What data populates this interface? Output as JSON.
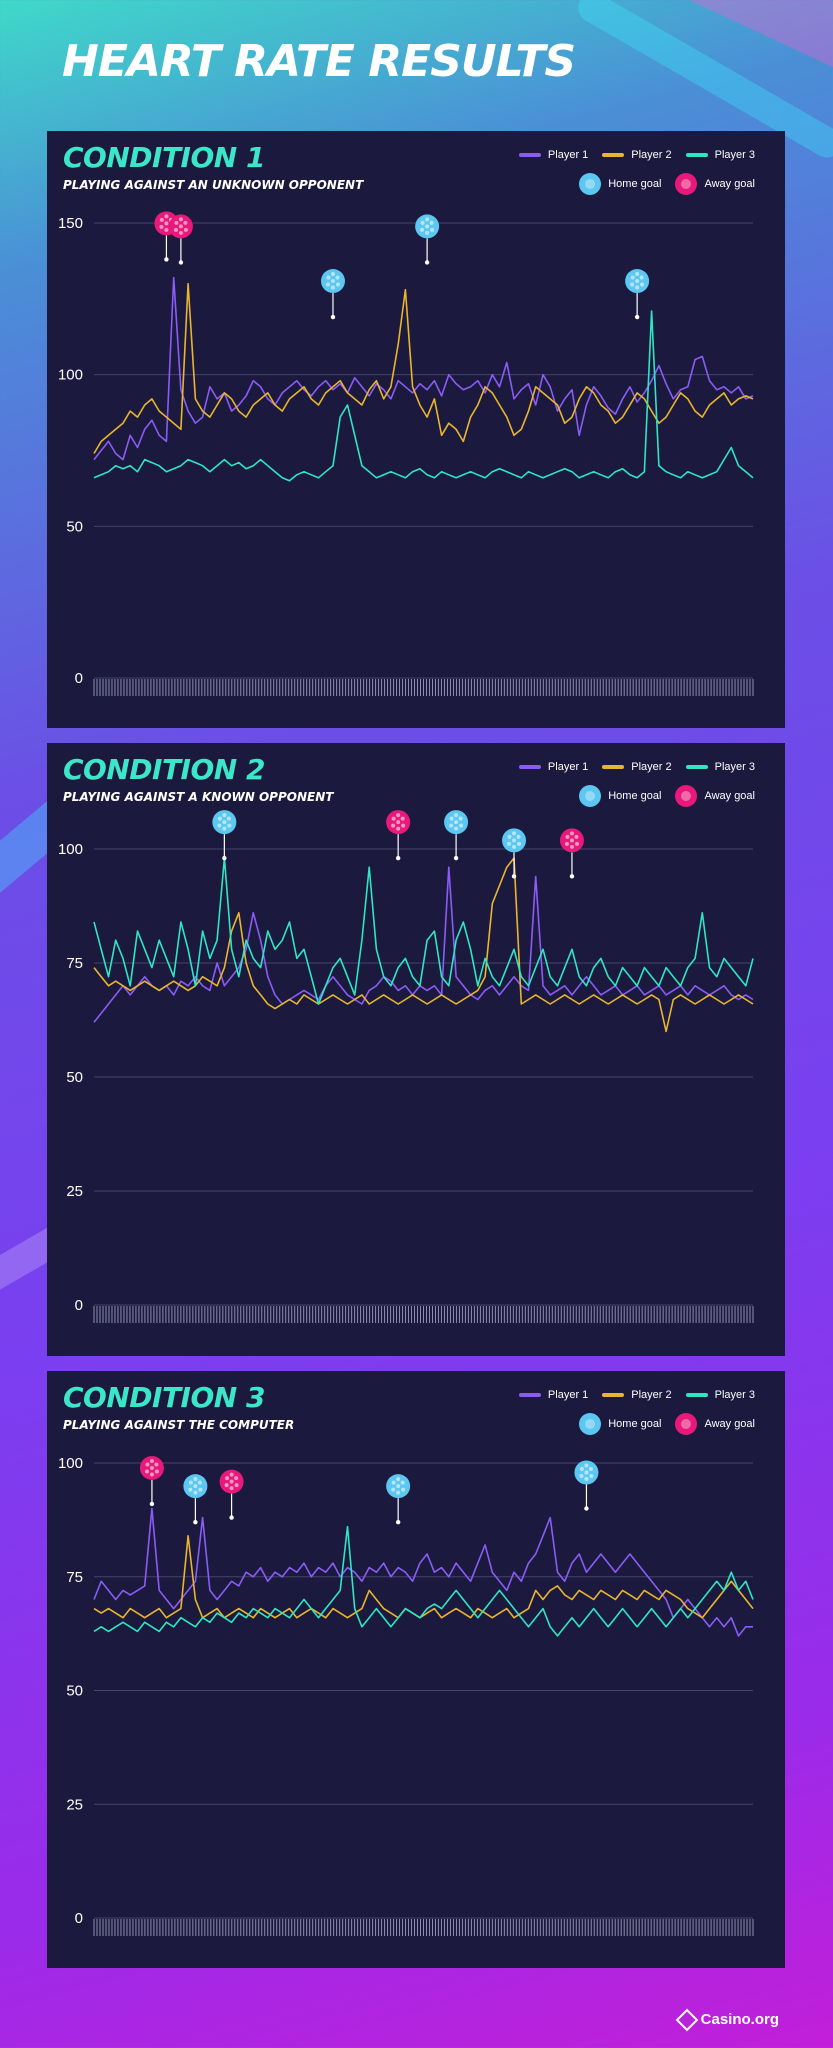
{
  "page": {
    "title": "HEART RATE RESULTS",
    "brand": "Casino.org"
  },
  "legend": {
    "player1": "Player 1",
    "player2": "Player 2",
    "player3": "Player 3",
    "home_goal": "Home goal",
    "away_goal": "Away goal"
  },
  "colors": {
    "player1": "#8a5cf5",
    "player2": "#e9b52e",
    "player3": "#2ee6c2",
    "home_goal": "#5cc7f0",
    "away_goal": "#e8197a",
    "panel_bg": "#1b1a3e",
    "grid": "#44436b",
    "title_accent": "#3ce6c8"
  },
  "chart_data": [
    {
      "type": "line",
      "title": "CONDITION 1",
      "subtitle": "PLAYING AGAINST AN UNKNOWN OPPONENT",
      "ylim": [
        0,
        150
      ],
      "yticks": [
        0,
        50,
        100,
        150
      ],
      "series": [
        {
          "name": "Player 1",
          "values": [
            72,
            75,
            78,
            74,
            72,
            80,
            76,
            82,
            85,
            80,
            78,
            132,
            95,
            88,
            84,
            86,
            96,
            92,
            94,
            88,
            90,
            93,
            98,
            96,
            92,
            90,
            94,
            96,
            98,
            95,
            93,
            96,
            98,
            95,
            97,
            94,
            99,
            96,
            93,
            97,
            95,
            92,
            98,
            96,
            94,
            97,
            95,
            98,
            93,
            100,
            97,
            95,
            96,
            98,
            94,
            100,
            96,
            104,
            92,
            95,
            97,
            90,
            100,
            96,
            88,
            92,
            95,
            80,
            90,
            96,
            93,
            89,
            87,
            92,
            96,
            91,
            94,
            98,
            103,
            97,
            92,
            95,
            96,
            105,
            106,
            98,
            95,
            96,
            94,
            96,
            92,
            93
          ]
        },
        {
          "name": "Player 2",
          "values": [
            74,
            78,
            80,
            82,
            84,
            88,
            86,
            90,
            92,
            88,
            86,
            84,
            82,
            130,
            92,
            88,
            86,
            90,
            94,
            92,
            88,
            86,
            90,
            92,
            94,
            90,
            88,
            92,
            94,
            96,
            92,
            90,
            94,
            96,
            98,
            94,
            92,
            90,
            95,
            98,
            92,
            96,
            110,
            128,
            96,
            90,
            86,
            92,
            80,
            84,
            82,
            78,
            86,
            90,
            96,
            94,
            90,
            86,
            80,
            82,
            88,
            96,
            94,
            92,
            90,
            84,
            86,
            92,
            96,
            94,
            90,
            88,
            84,
            86,
            90,
            94,
            92,
            88,
            84,
            86,
            90,
            94,
            92,
            88,
            86,
            90,
            92,
            94,
            90,
            92,
            93,
            92
          ]
        },
        {
          "name": "Player 3",
          "values": [
            66,
            67,
            68,
            70,
            69,
            70,
            68,
            72,
            71,
            70,
            68,
            69,
            70,
            72,
            71,
            70,
            68,
            70,
            72,
            70,
            71,
            69,
            70,
            72,
            70,
            68,
            66,
            65,
            67,
            68,
            67,
            66,
            68,
            70,
            86,
            90,
            80,
            70,
            68,
            66,
            67,
            68,
            67,
            66,
            68,
            69,
            67,
            66,
            68,
            67,
            66,
            67,
            68,
            67,
            66,
            68,
            69,
            68,
            67,
            66,
            68,
            67,
            66,
            67,
            68,
            69,
            68,
            66,
            67,
            68,
            67,
            66,
            68,
            69,
            67,
            66,
            68,
            121,
            70,
            68,
            67,
            66,
            68,
            67,
            66,
            67,
            68,
            72,
            76,
            70,
            68,
            66
          ]
        }
      ],
      "goals": [
        {
          "type": "away",
          "x": 10,
          "value": 138
        },
        {
          "type": "away",
          "x": 12,
          "value": 137
        },
        {
          "type": "home",
          "x": 33,
          "value": 119
        },
        {
          "type": "home",
          "x": 46,
          "value": 137
        },
        {
          "type": "home",
          "x": 75,
          "value": 119
        }
      ]
    },
    {
      "type": "line",
      "title": "CONDITION 2",
      "subtitle": "PLAYING AGAINST A KNOWN OPPONENT",
      "ylim": [
        0,
        100
      ],
      "yticks": [
        0,
        25,
        50,
        75,
        100
      ],
      "series": [
        {
          "name": "Player 1",
          "values": [
            62,
            64,
            66,
            68,
            70,
            68,
            70,
            72,
            70,
            69,
            70,
            68,
            71,
            70,
            72,
            70,
            69,
            75,
            70,
            72,
            74,
            78,
            86,
            80,
            72,
            68,
            66,
            67,
            68,
            69,
            68,
            67,
            70,
            72,
            70,
            68,
            67,
            66,
            69,
            70,
            72,
            71,
            69,
            70,
            68,
            70,
            69,
            70,
            68,
            96,
            72,
            70,
            68,
            67,
            69,
            70,
            68,
            70,
            72,
            70,
            69,
            94,
            70,
            68,
            69,
            70,
            68,
            70,
            72,
            70,
            68,
            69,
            70,
            68,
            69,
            70,
            68,
            69,
            70,
            68,
            69,
            70,
            68,
            70,
            69,
            68,
            69,
            70,
            68,
            67,
            68,
            67
          ]
        },
        {
          "name": "Player 2",
          "values": [
            74,
            72,
            70,
            71,
            70,
            69,
            70,
            71,
            70,
            69,
            70,
            71,
            70,
            69,
            70,
            72,
            71,
            70,
            74,
            82,
            86,
            75,
            70,
            68,
            66,
            65,
            66,
            67,
            66,
            68,
            67,
            66,
            67,
            68,
            67,
            66,
            67,
            68,
            66,
            67,
            68,
            67,
            66,
            67,
            68,
            67,
            66,
            67,
            68,
            67,
            66,
            67,
            68,
            69,
            72,
            88,
            92,
            96,
            98,
            66,
            67,
            68,
            67,
            66,
            67,
            68,
            67,
            66,
            67,
            68,
            67,
            66,
            67,
            68,
            67,
            66,
            67,
            68,
            67,
            60,
            67,
            68,
            67,
            66,
            67,
            68,
            67,
            66,
            67,
            68,
            67,
            66
          ]
        },
        {
          "name": "Player 3",
          "values": [
            84,
            78,
            72,
            80,
            76,
            70,
            82,
            78,
            74,
            80,
            76,
            72,
            84,
            78,
            70,
            82,
            76,
            80,
            98,
            78,
            72,
            80,
            76,
            74,
            82,
            78,
            80,
            84,
            76,
            78,
            72,
            66,
            70,
            74,
            76,
            72,
            68,
            80,
            96,
            78,
            72,
            70,
            74,
            76,
            72,
            70,
            80,
            82,
            72,
            70,
            80,
            84,
            78,
            70,
            76,
            72,
            70,
            74,
            78,
            72,
            70,
            74,
            78,
            72,
            70,
            74,
            78,
            72,
            70,
            74,
            76,
            72,
            70,
            74,
            72,
            70,
            74,
            72,
            70,
            74,
            72,
            70,
            74,
            76,
            86,
            74,
            72,
            76,
            74,
            72,
            70,
            76
          ]
        }
      ],
      "goals": [
        {
          "type": "home",
          "x": 18,
          "value": 98
        },
        {
          "type": "away",
          "x": 42,
          "value": 98
        },
        {
          "type": "home",
          "x": 50,
          "value": 98
        },
        {
          "type": "home",
          "x": 58,
          "value": 94
        },
        {
          "type": "away",
          "x": 66,
          "value": 94
        }
      ]
    },
    {
      "type": "line",
      "title": "CONDITION 3",
      "subtitle": "PLAYING AGAINST THE COMPUTER",
      "ylim": [
        0,
        100
      ],
      "yticks": [
        0,
        25,
        50,
        75,
        100
      ],
      "series": [
        {
          "name": "Player 1",
          "values": [
            70,
            74,
            72,
            70,
            72,
            71,
            72,
            73,
            90,
            72,
            70,
            68,
            70,
            72,
            74,
            88,
            72,
            70,
            72,
            74,
            73,
            76,
            75,
            77,
            74,
            76,
            75,
            77,
            76,
            78,
            75,
            77,
            76,
            78,
            75,
            77,
            76,
            74,
            77,
            76,
            78,
            75,
            77,
            76,
            74,
            78,
            80,
            76,
            77,
            75,
            78,
            76,
            74,
            78,
            82,
            76,
            74,
            72,
            76,
            74,
            78,
            80,
            84,
            88,
            76,
            74,
            78,
            80,
            76,
            78,
            80,
            78,
            76,
            78,
            80,
            78,
            76,
            74,
            72,
            70,
            66,
            68,
            70,
            68,
            66,
            64,
            66,
            64,
            66,
            62,
            64,
            64
          ]
        },
        {
          "name": "Player 2",
          "values": [
            68,
            67,
            68,
            67,
            66,
            68,
            67,
            66,
            67,
            68,
            66,
            67,
            68,
            84,
            70,
            66,
            67,
            68,
            66,
            67,
            68,
            67,
            66,
            68,
            67,
            66,
            67,
            68,
            66,
            67,
            68,
            67,
            66,
            68,
            67,
            66,
            67,
            68,
            72,
            70,
            68,
            67,
            66,
            68,
            67,
            66,
            67,
            68,
            66,
            67,
            68,
            67,
            66,
            68,
            67,
            66,
            67,
            68,
            66,
            67,
            68,
            72,
            70,
            72,
            73,
            71,
            70,
            72,
            71,
            70,
            72,
            71,
            70,
            72,
            71,
            70,
            72,
            71,
            70,
            72,
            71,
            70,
            68,
            67,
            66,
            68,
            70,
            72,
            74,
            72,
            70,
            68
          ]
        },
        {
          "name": "Player 3",
          "values": [
            63,
            64,
            63,
            64,
            65,
            64,
            63,
            65,
            64,
            63,
            65,
            64,
            66,
            65,
            64,
            66,
            65,
            67,
            66,
            65,
            67,
            66,
            68,
            67,
            66,
            68,
            67,
            66,
            68,
            70,
            68,
            66,
            68,
            70,
            72,
            86,
            68,
            64,
            66,
            68,
            66,
            64,
            66,
            68,
            67,
            66,
            68,
            69,
            68,
            70,
            72,
            70,
            68,
            66,
            68,
            70,
            72,
            70,
            68,
            66,
            64,
            66,
            68,
            64,
            62,
            64,
            66,
            64,
            66,
            68,
            66,
            64,
            66,
            68,
            66,
            64,
            66,
            68,
            66,
            64,
            66,
            68,
            66,
            68,
            70,
            72,
            74,
            72,
            76,
            72,
            74,
            70
          ]
        }
      ],
      "goals": [
        {
          "type": "away",
          "x": 8,
          "value": 91
        },
        {
          "type": "home",
          "x": 14,
          "value": 87
        },
        {
          "type": "away",
          "x": 19,
          "value": 88
        },
        {
          "type": "home",
          "x": 42,
          "value": 87
        },
        {
          "type": "home",
          "x": 68,
          "value": 90
        }
      ]
    }
  ]
}
